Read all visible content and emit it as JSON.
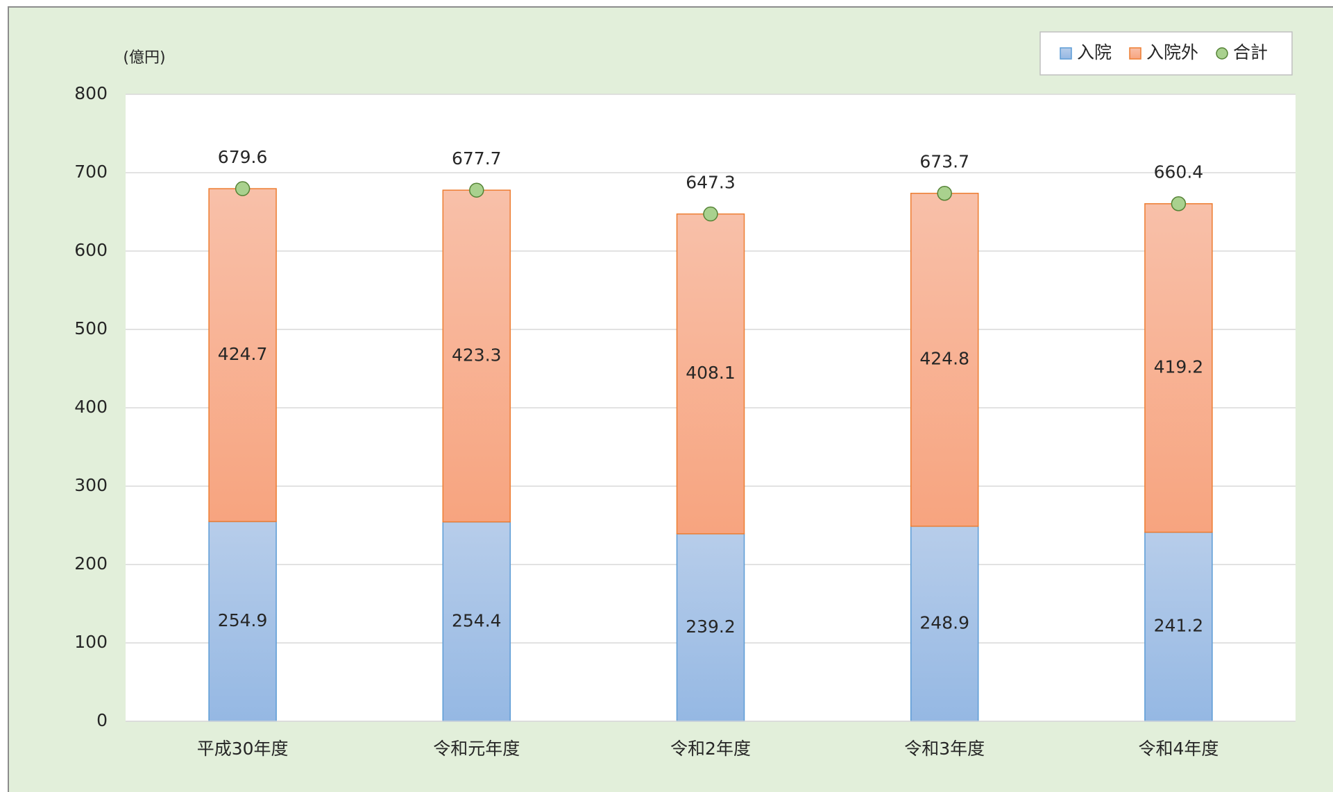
{
  "chart_data": {
    "type": "bar",
    "stacked": true,
    "y_axis_label": "(億円)",
    "categories": [
      "平成30年度",
      "令和元年度",
      "令和2年度",
      "令和3年度",
      "令和4年度"
    ],
    "series": [
      {
        "name": "入院",
        "type": "bar",
        "color": "#a5c2e8",
        "values": [
          254.9,
          254.4,
          239.2,
          248.9,
          241.2
        ]
      },
      {
        "name": "入院外",
        "type": "bar",
        "color": "#f8b294",
        "values": [
          424.7,
          423.3,
          408.1,
          424.8,
          419.2
        ]
      },
      {
        "name": "合計",
        "type": "line",
        "color": "#a9d18e",
        "values": [
          679.6,
          677.7,
          647.3,
          673.7,
          660.4
        ]
      }
    ],
    "ylim": [
      0,
      800
    ],
    "yticks": [
      0,
      100,
      200,
      300,
      400,
      500,
      600,
      700,
      800
    ],
    "grid": true,
    "legend": "top-right"
  }
}
